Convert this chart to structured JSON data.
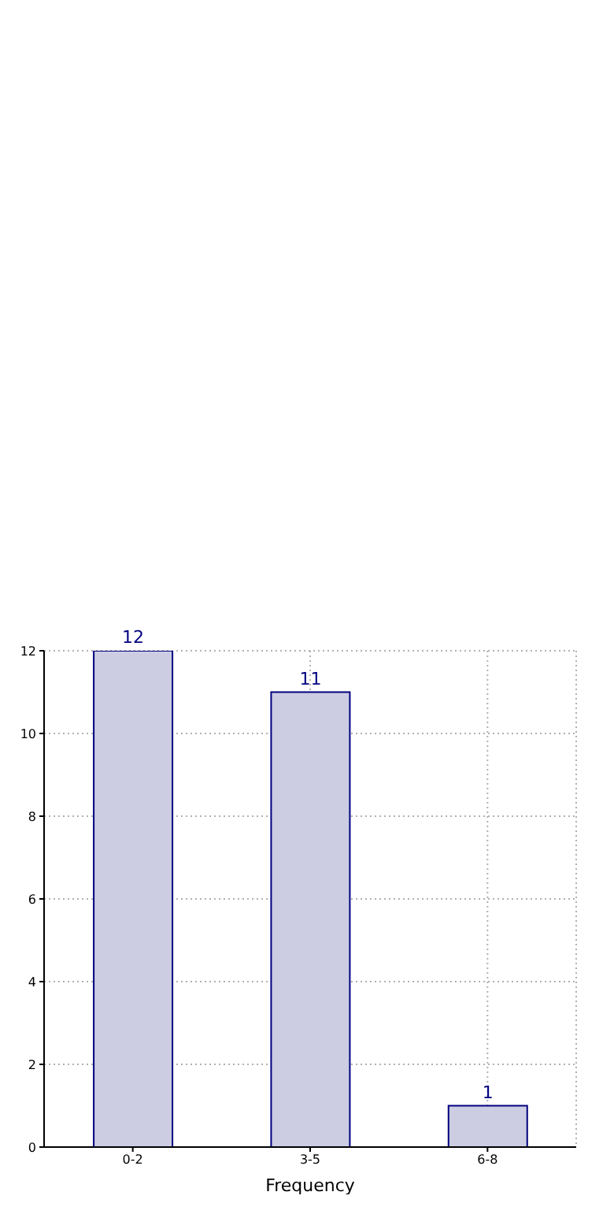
{
  "chart_data": {
    "type": "bar",
    "xlabel": "Frequency",
    "categories": [
      "0-2",
      "3-5",
      "6-8"
    ],
    "values": [
      12,
      11,
      1
    ],
    "color": "#cccce3",
    "ylim": [
      0,
      12
    ],
    "yticks": [
      0,
      2,
      4,
      6,
      8,
      10,
      12
    ],
    "grid": true,
    "data_labels": true
  }
}
